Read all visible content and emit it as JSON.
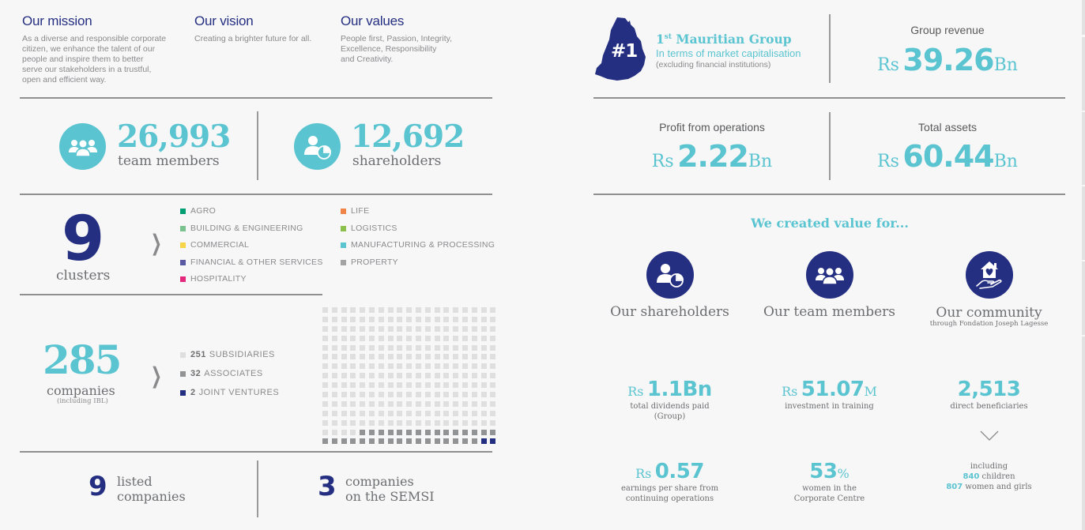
{
  "colors": {
    "teal": "#5bc4d1",
    "navy": "#252f82",
    "text_gray": "#6d6e71",
    "divider": "#8f8f8f",
    "background": "#f7f7f7"
  },
  "mission": {
    "title": "Our mission",
    "lines": [
      "As a diverse and responsible corporate",
      "citizen, we enhance the talent of our",
      "people and inspire them to better",
      "serve our stakeholders in a trustful,",
      "open and efficient way."
    ]
  },
  "vision": {
    "title": "Our vision",
    "text": "Creating a brighter future for all."
  },
  "values": {
    "title": "Our values",
    "lines": [
      "People first, Passion, Integrity,",
      "Excellence, Responsibility",
      "and Creativity."
    ]
  },
  "team": {
    "icon": "team-group-icon",
    "value": "26,993",
    "label": "team members"
  },
  "shareholders": {
    "icon": "shareholder-pie-icon",
    "value": "12,692",
    "label": "shareholders"
  },
  "clusters": {
    "value": "9",
    "label": "clusters",
    "items": [
      {
        "label": "AGRO",
        "color": "#009e73"
      },
      {
        "label": "BUILDING & ENGINEERING",
        "color": "#7ac28e"
      },
      {
        "label": "COMMERCIAL",
        "color": "#f7d548"
      },
      {
        "label": "FINANCIAL & OTHER SERVICES",
        "color": "#5a5aa3"
      },
      {
        "label": "HOSPITALITY",
        "color": "#e4287b"
      },
      {
        "label": "LIFE",
        "color": "#f08447"
      },
      {
        "label": "LOGISTICS",
        "color": "#8cc04c"
      },
      {
        "label": "MANUFACTURING & PROCESSING",
        "color": "#5bc4d1"
      },
      {
        "label": "PROPERTY",
        "color": "#a3a3a3"
      }
    ]
  },
  "companies": {
    "value": "285",
    "label": "companies",
    "note": "(including IBL)",
    "types": [
      {
        "count": "251",
        "label": "SUBSIDIARIES",
        "color": "#dfdfe0"
      },
      {
        "count": "32",
        "label": "ASSOCIATES",
        "color": "#929395"
      },
      {
        "count": "2",
        "label": "JOINT VENTURES",
        "color": "#252f82"
      }
    ]
  },
  "listed": {
    "value": "9",
    "line1": "listed",
    "line2": "companies"
  },
  "semsi": {
    "value": "3",
    "line1": "companies",
    "line2": "on the SEMSI"
  },
  "ranking": {
    "badge": "#1",
    "title_prefix": "1",
    "title_sup": "st",
    "title_rest": " Mauritian Group",
    "subtitle": "In terms of market capitalisation",
    "note": "(excluding financial institutions)"
  },
  "kpis": {
    "revenue": {
      "label": "Group revenue",
      "currency": "Rs",
      "value": "39.26",
      "unit": "Bn"
    },
    "profit": {
      "label": "Profit from operations",
      "currency": "Rs",
      "value": "2.22",
      "unit": "Bn"
    },
    "assets": {
      "label": "Total assets",
      "currency": "Rs",
      "value": "60.44",
      "unit": "Bn"
    }
  },
  "value_created": {
    "title": "We created value for...",
    "stakeholders": [
      {
        "label": "Our shareholders",
        "icon": "shareholder-pie-icon"
      },
      {
        "label": "Our team members",
        "icon": "team-group-icon"
      },
      {
        "label": "Our community",
        "sub": "through Fondation Joseph Lagesse",
        "icon": "house-in-hand-icon"
      }
    ],
    "metrics": {
      "dividends": {
        "currency": "Rs",
        "value": "1.1Bn",
        "desc1": "total dividends paid",
        "desc2": "(Group)"
      },
      "training": {
        "currency": "Rs",
        "value": "51.07",
        "unit": "M",
        "desc1": "investment in training"
      },
      "beneficiaries": {
        "value": "2,513",
        "desc1": "direct beneficiaries"
      },
      "eps": {
        "currency": "Rs",
        "value": "0.57",
        "desc1": "earnings per share from",
        "desc2": "continuing operations"
      },
      "women": {
        "value": "53",
        "unit": "%",
        "desc1": "women in the",
        "desc2": "Corporate Centre"
      },
      "including": {
        "label": "including",
        "children_count": "840",
        "children_label": " children",
        "women_count": "807",
        "women_label": " women and girls"
      }
    }
  }
}
